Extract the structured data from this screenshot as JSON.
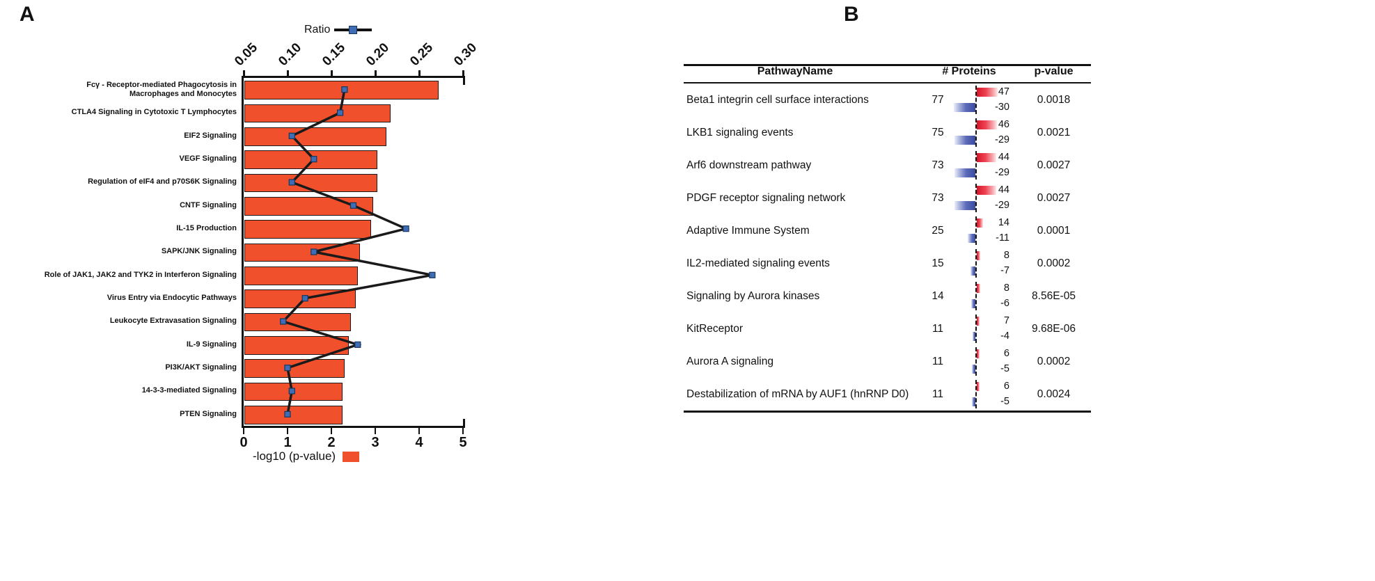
{
  "panel_a": {
    "label": "A",
    "legend_top": "Ratio",
    "legend_bottom": "-log10 (p-value)"
  },
  "panel_b": {
    "label": "B"
  },
  "chart_data": [
    {
      "type": "bar",
      "orientation": "horizontal",
      "title": "",
      "grid": false,
      "legend_position": "top",
      "categories": [
        "Fcγ - Receptor-mediated Phagocytosis in\nMacrophages and Monocytes",
        "CTLA4 Signaling in Cytotoxic T Lymphocytes",
        "EIF2 Signaling",
        "VEGF Signaling",
        "Regulation of eIF4 and p70S6K Signaling",
        "CNTF Signaling",
        "IL-15 Production",
        "SAPK/JNK Signaling",
        "Role of JAK1, JAK2 and TYK2 in Interferon Signaling",
        "Virus Entry via Endocytic Pathways",
        "Leukocyte Extravasation Signaling",
        "IL-9 Signaling",
        "PI3K/AKT Signaling",
        "14-3-3-mediated Signaling",
        "PTEN Signaling"
      ],
      "series": [
        {
          "name": "-log10 (p-value)",
          "type": "bar",
          "axis": "bottom",
          "color": "#f0512c",
          "values": [
            4.4,
            3.3,
            3.2,
            3.0,
            3.0,
            2.9,
            2.85,
            2.6,
            2.55,
            2.5,
            2.4,
            2.35,
            2.25,
            2.2,
            2.2
          ]
        },
        {
          "name": "Ratio",
          "type": "line",
          "axis": "top",
          "color": "#1a1a1a",
          "marker_color": "#3f6db5",
          "values": [
            0.165,
            0.16,
            0.105,
            0.13,
            0.105,
            0.175,
            0.235,
            0.13,
            0.265,
            0.12,
            0.095,
            0.18,
            0.1,
            0.105,
            0.1
          ]
        }
      ],
      "bottom_axis": {
        "label": "-log10 (p-value)",
        "range": [
          0,
          5
        ],
        "ticks": [
          0,
          1,
          2,
          3,
          4,
          5
        ]
      },
      "top_axis": {
        "label": "Ratio",
        "range": [
          0.05,
          0.3
        ],
        "ticks": [
          0.05,
          0.1,
          0.15,
          0.2,
          0.25,
          0.3
        ],
        "tick_labels": [
          "0.05",
          "0.10",
          "0.15",
          "0.20",
          "0.25",
          "0.30"
        ]
      }
    },
    {
      "type": "table",
      "headers": [
        "PathwayName",
        "# Proteins",
        "p-value"
      ],
      "up_color": "#d6152c",
      "down_color": "#3a4ba0",
      "rows": [
        {
          "name": "Beta1 integrin cell surface interactions",
          "proteins": 77,
          "up": 47,
          "down": -30,
          "p_value": "0.0018"
        },
        {
          "name": "LKB1 signaling events",
          "proteins": 75,
          "up": 46,
          "down": -29,
          "p_value": "0.0021"
        },
        {
          "name": "Arf6 downstream pathway",
          "proteins": 73,
          "up": 44,
          "down": -29,
          "p_value": "0.0027"
        },
        {
          "name": "PDGF receptor signaling network",
          "proteins": 73,
          "up": 44,
          "down": -29,
          "p_value": "0.0027"
        },
        {
          "name": "Adaptive Immune System",
          "proteins": 25,
          "up": 14,
          "down": -11,
          "p_value": "0.0001"
        },
        {
          "name": "IL2-mediated signaling events",
          "proteins": 15,
          "up": 8,
          "down": -7,
          "p_value": "0.0002"
        },
        {
          "name": "Signaling by Aurora kinases",
          "proteins": 14,
          "up": 8,
          "down": -6,
          "p_value": "8.56E-05"
        },
        {
          "name": "KitReceptor",
          "proteins": 11,
          "up": 7,
          "down": -4,
          "p_value": "9.68E-06"
        },
        {
          "name": "Aurora A signaling",
          "proteins": 11,
          "up": 6,
          "down": -5,
          "p_value": "0.0002"
        },
        {
          "name": "Destabilization of mRNA by AUF1 (hnRNP D0)",
          "proteins": 11,
          "up": 6,
          "down": -5,
          "p_value": "0.0024"
        }
      ]
    }
  ]
}
